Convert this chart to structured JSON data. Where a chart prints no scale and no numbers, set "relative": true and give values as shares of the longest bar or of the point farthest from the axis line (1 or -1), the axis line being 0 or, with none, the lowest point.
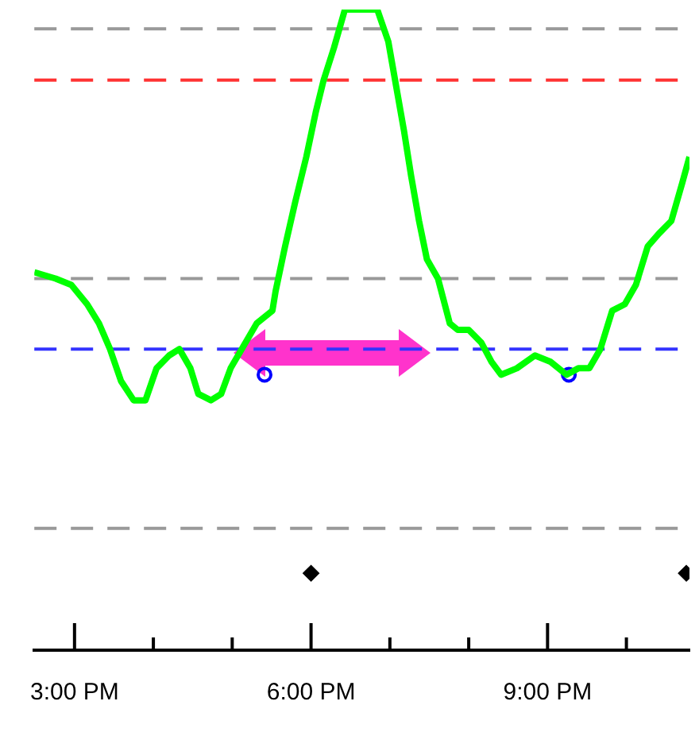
{
  "chart_data": {
    "type": "line",
    "relative": true,
    "xlim": [
      14.49,
      22.8
    ],
    "xticks": [
      {
        "value": 15,
        "label": "3:00 PM"
      },
      {
        "value": 16,
        "label": null
      },
      {
        "value": 17,
        "label": null
      },
      {
        "value": 18,
        "label": "6:00 PM"
      },
      {
        "value": 19,
        "label": null
      },
      {
        "value": 20,
        "label": null
      },
      {
        "value": 21,
        "label": "9:00 PM"
      },
      {
        "value": 22,
        "label": null
      }
    ],
    "grid": false,
    "legend": false,
    "series": [
      {
        "color": "#00ff00",
        "marker": "none",
        "x": [
          14.49,
          14.76,
          14.96,
          15.16,
          15.31,
          15.45,
          15.59,
          15.75,
          15.9,
          16.04,
          16.2,
          16.33,
          16.47,
          16.57,
          16.73,
          16.86,
          16.98,
          17.31,
          17.51,
          17.55,
          17.67,
          17.8,
          17.94,
          18.06,
          18.16,
          18.29,
          18.43,
          18.84,
          18.98,
          19.08,
          19.18,
          19.27,
          19.37,
          19.47,
          19.61,
          19.76,
          19.86,
          20.0,
          20.16,
          20.29,
          20.41,
          20.61,
          20.84,
          21.04,
          21.24,
          21.39,
          21.53,
          21.67,
          21.82,
          21.98,
          22.12,
          22.27,
          22.41,
          22.57,
          22.71,
          22.8
        ],
        "values": [
          0.59,
          0.58,
          0.57,
          0.54,
          0.51,
          0.47,
          0.42,
          0.39,
          0.39,
          0.44,
          0.46,
          0.47,
          0.44,
          0.4,
          0.39,
          0.4,
          0.44,
          0.51,
          0.53,
          0.56,
          0.63,
          0.7,
          0.77,
          0.84,
          0.89,
          0.94,
          1,
          1,
          0.95,
          0.88,
          0.81,
          0.74,
          0.67,
          0.61,
          0.58,
          0.51,
          0.5,
          0.5,
          0.48,
          0.45,
          0.43,
          0.44,
          0.46,
          0.45,
          0.43,
          0.44,
          0.44,
          0.47,
          0.53,
          0.54,
          0.57,
          0.63,
          0.65,
          0.67,
          0.73,
          0.77
        ]
      },
      {
        "type": "scatter",
        "color": "#0000ff",
        "marker": "circle",
        "x": [
          17.41,
          21.27
        ],
        "values": [
          0.43,
          0.43
        ]
      },
      {
        "type": "scatter",
        "color": "#000000",
        "marker": "diamond",
        "x": [
          18.0,
          22.76
        ],
        "values": [
          0.12,
          0.12
        ]
      }
    ],
    "ref_lines": [
      {
        "axis": "y",
        "value": 0.97,
        "color": "#999999",
        "line_style": "dashed"
      },
      {
        "axis": "y",
        "value": 0.89,
        "color": "#ff3333",
        "line_style": "dashed"
      },
      {
        "axis": "y",
        "value": 0.58,
        "color": "#999999",
        "line_style": "dashed"
      },
      {
        "axis": "y",
        "value": 0.47,
        "color": "#3333ff",
        "line_style": "dashed"
      },
      {
        "axis": "y",
        "value": 0.19,
        "color": "#999999",
        "line_style": "dashed"
      }
    ]
  }
}
